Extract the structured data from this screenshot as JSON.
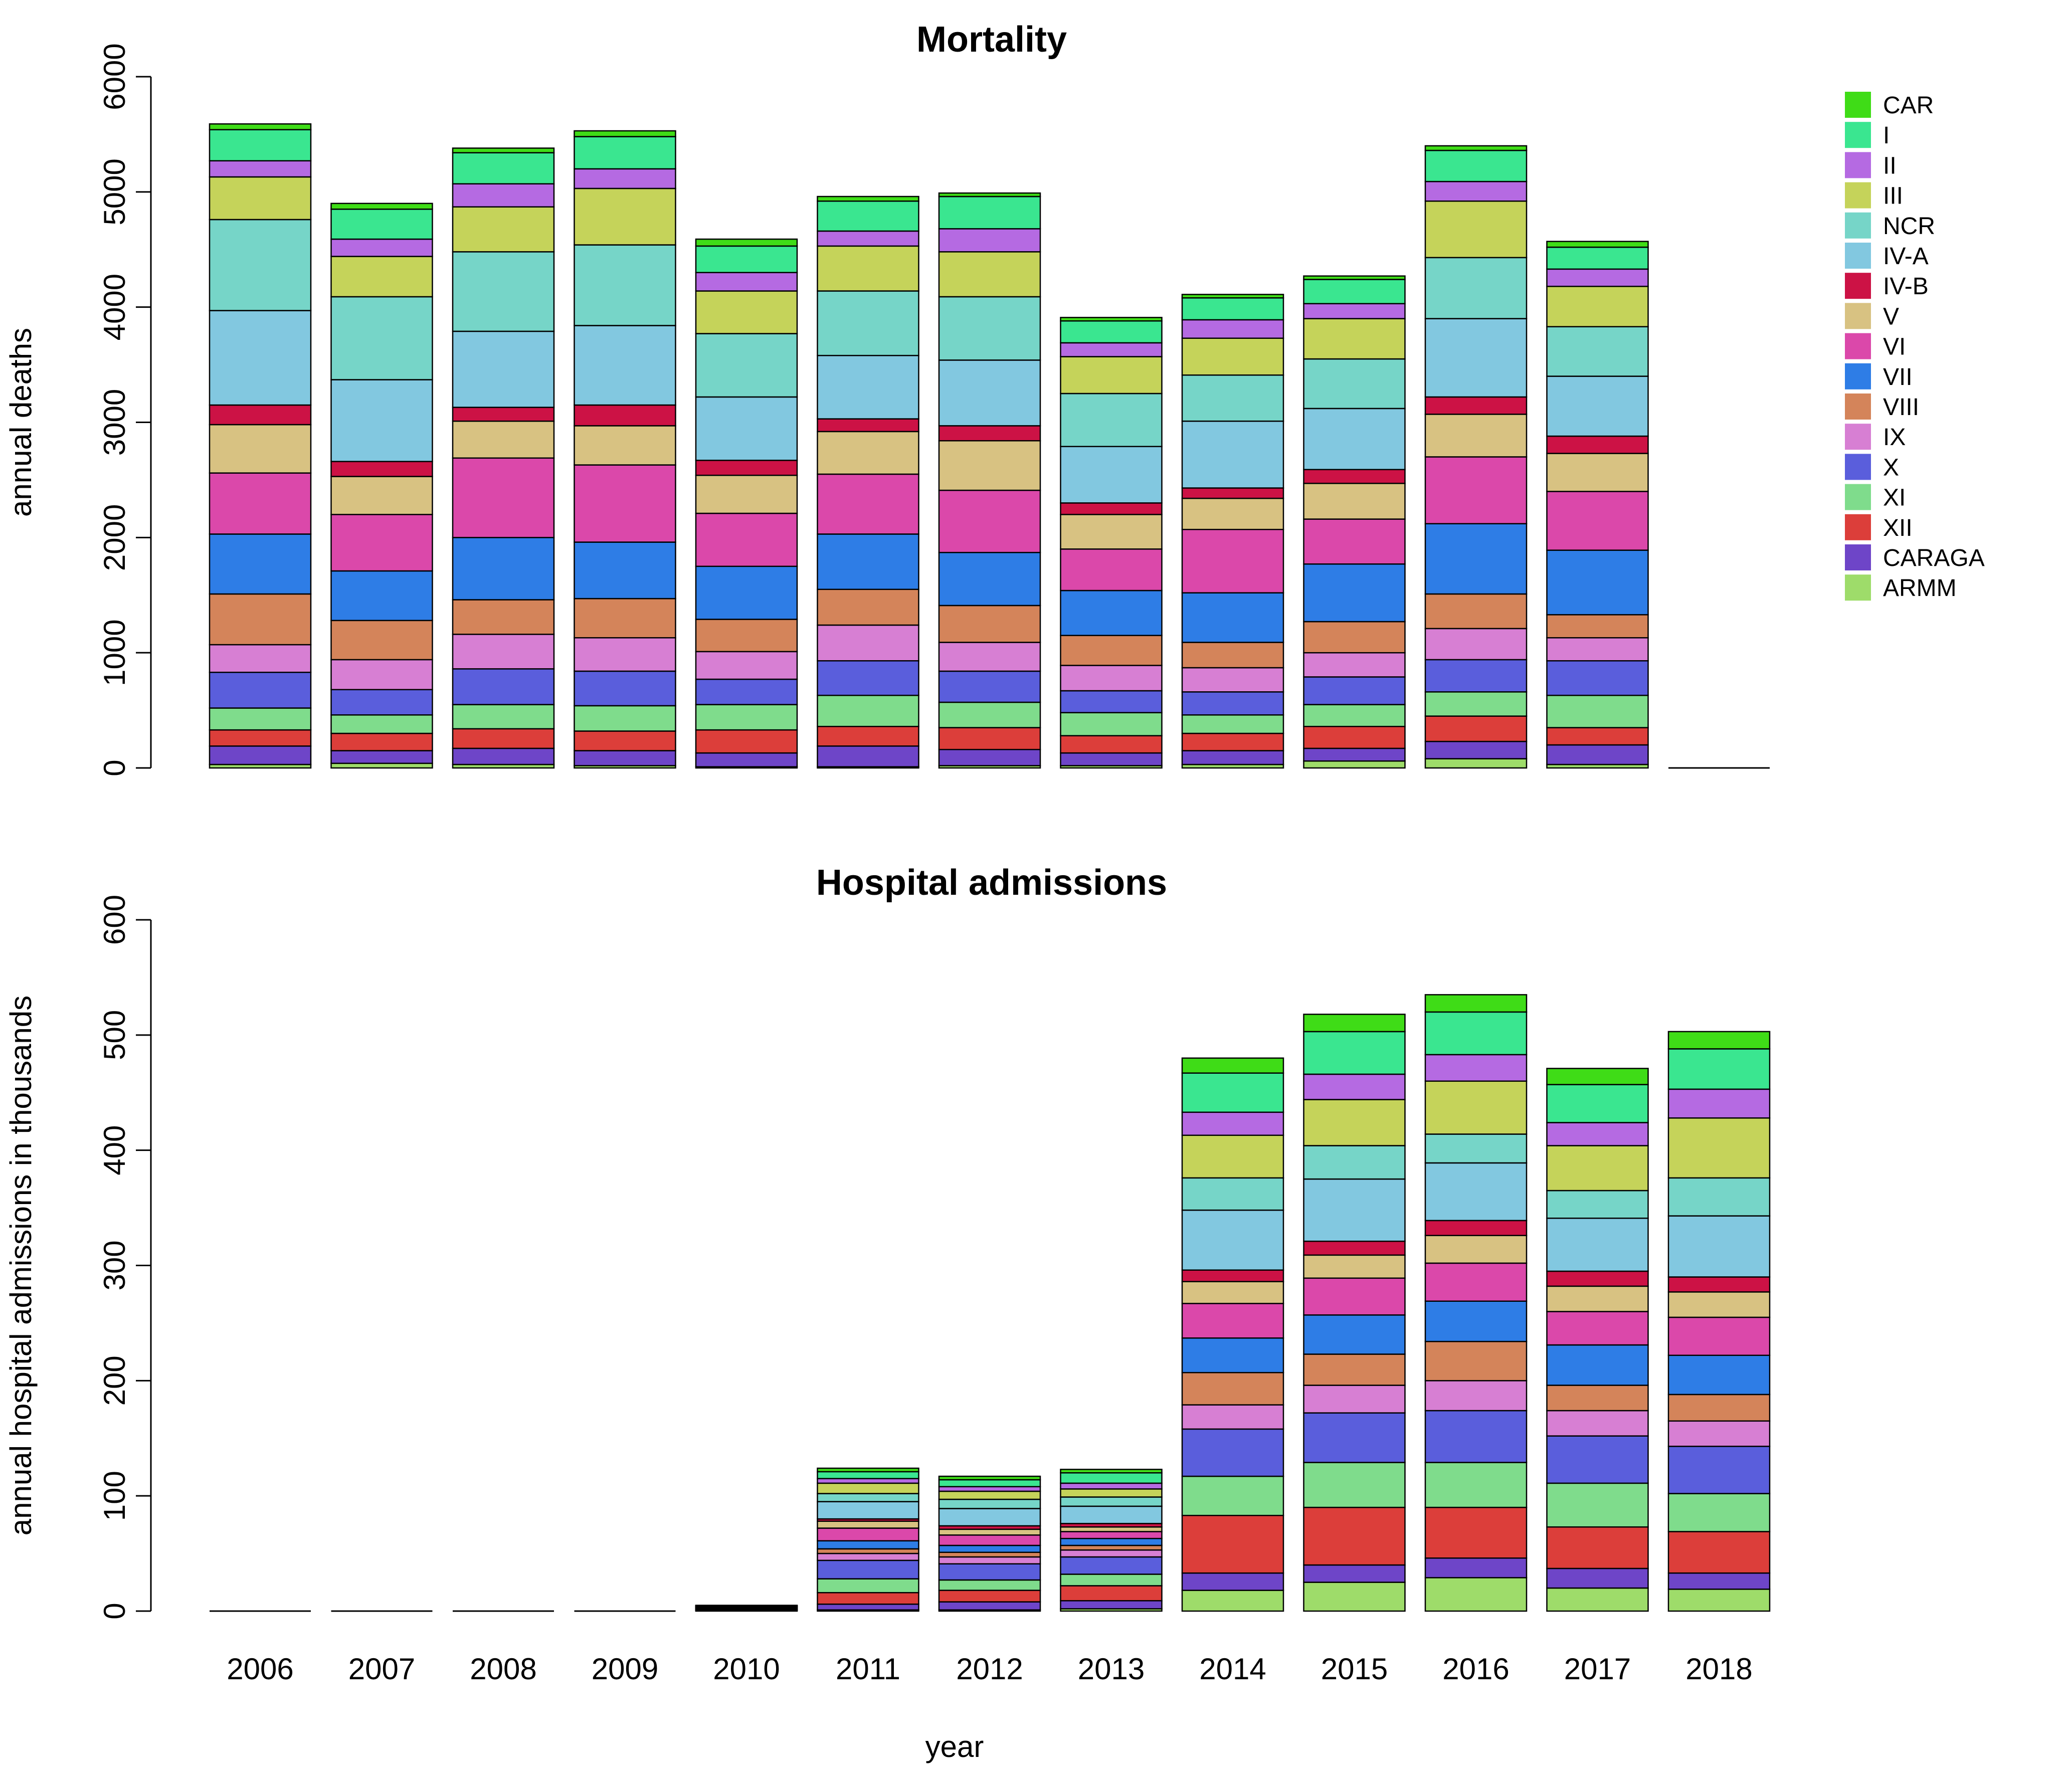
{
  "chart_data": [
    {
      "type": "bar",
      "stacked": true,
      "title": "Mortality",
      "xlabel": "",
      "ylabel": "annual deaths",
      "ylim": [
        0,
        6000
      ],
      "yticks": [
        0,
        1000,
        2000,
        3000,
        4000,
        5000,
        6000
      ],
      "categories": [
        "2006",
        "2007",
        "2008",
        "2009",
        "2010",
        "2011",
        "2012",
        "2013",
        "2014",
        "2015",
        "2016",
        "2017",
        "2018"
      ],
      "series": [
        {
          "name": "ARMM",
          "color": "#9edc6a",
          "values": [
            30,
            40,
            30,
            20,
            10,
            10,
            20,
            20,
            30,
            60,
            80,
            30,
            0
          ]
        },
        {
          "name": "CARAGA",
          "color": "#6e45c8",
          "values": [
            160,
            110,
            140,
            130,
            120,
            180,
            140,
            110,
            120,
            110,
            150,
            170,
            0
          ]
        },
        {
          "name": "XII",
          "color": "#dc3e3a",
          "values": [
            140,
            150,
            170,
            170,
            200,
            170,
            190,
            150,
            150,
            190,
            220,
            150,
            0
          ]
        },
        {
          "name": "XI",
          "color": "#7fdc8c",
          "values": [
            190,
            160,
            210,
            220,
            220,
            270,
            220,
            200,
            160,
            190,
            210,
            280,
            0
          ]
        },
        {
          "name": "X",
          "color": "#5a5edc",
          "values": [
            310,
            220,
            310,
            300,
            220,
            300,
            270,
            190,
            200,
            240,
            280,
            300,
            0
          ]
        },
        {
          "name": "IX",
          "color": "#d77fd3",
          "values": [
            240,
            260,
            300,
            290,
            240,
            310,
            250,
            220,
            210,
            210,
            270,
            200,
            0
          ]
        },
        {
          "name": "VIII",
          "color": "#d4845a",
          "values": [
            440,
            340,
            300,
            340,
            280,
            310,
            320,
            260,
            220,
            270,
            300,
            200,
            0
          ]
        },
        {
          "name": "VII",
          "color": "#2e7de6",
          "values": [
            520,
            430,
            540,
            490,
            460,
            480,
            460,
            390,
            430,
            500,
            610,
            560,
            0
          ]
        },
        {
          "name": "VI",
          "color": "#db48aa",
          "values": [
            530,
            490,
            690,
            670,
            460,
            520,
            540,
            360,
            550,
            390,
            580,
            510,
            0
          ]
        },
        {
          "name": "V",
          "color": "#d8c282",
          "values": [
            420,
            330,
            320,
            340,
            330,
            370,
            430,
            300,
            270,
            310,
            370,
            330,
            0
          ]
        },
        {
          "name": "IV-B",
          "color": "#cc1245",
          "values": [
            170,
            130,
            120,
            180,
            130,
            110,
            130,
            100,
            90,
            120,
            150,
            150,
            0
          ]
        },
        {
          "name": "IV-A",
          "color": "#82c8e0",
          "values": [
            820,
            710,
            660,
            690,
            550,
            550,
            570,
            490,
            580,
            530,
            680,
            520,
            0
          ]
        },
        {
          "name": "NCR",
          "color": "#76d5c8",
          "values": [
            790,
            720,
            690,
            700,
            550,
            560,
            550,
            460,
            400,
            430,
            530,
            430,
            0
          ]
        },
        {
          "name": "III",
          "color": "#c5d35a",
          "values": [
            370,
            350,
            390,
            490,
            370,
            390,
            390,
            320,
            320,
            350,
            490,
            350,
            0
          ]
        },
        {
          "name": "II",
          "color": "#b56ae2",
          "values": [
            140,
            150,
            200,
            170,
            160,
            130,
            200,
            120,
            160,
            130,
            170,
            150,
            0
          ]
        },
        {
          "name": "I",
          "color": "#3ae690",
          "values": [
            270,
            260,
            270,
            280,
            230,
            260,
            280,
            190,
            190,
            210,
            270,
            190,
            0
          ]
        },
        {
          "name": "CAR",
          "color": "#3fdc17",
          "values": [
            50,
            50,
            40,
            50,
            60,
            40,
            30,
            30,
            30,
            30,
            40,
            50,
            0
          ]
        }
      ]
    },
    {
      "type": "bar",
      "stacked": true,
      "title": "Hospital admissions",
      "xlabel": "year",
      "ylabel": "annual hospital admissions in thousands",
      "ylim": [
        0,
        600
      ],
      "yticks": [
        0,
        100,
        200,
        300,
        400,
        500,
        600
      ],
      "categories": [
        "2006",
        "2007",
        "2008",
        "2009",
        "2010",
        "2011",
        "2012",
        "2013",
        "2014",
        "2015",
        "2016",
        "2017",
        "2018"
      ],
      "series": [
        {
          "name": "ARMM",
          "color": "#9edc6a",
          "values": [
            0,
            0,
            0,
            0,
            0.3,
            1,
            1,
            2,
            18,
            25,
            29,
            20,
            19
          ]
        },
        {
          "name": "CARAGA",
          "color": "#6e45c8",
          "values": [
            0,
            0,
            0,
            0,
            0.3,
            5,
            7,
            7,
            15,
            15,
            17,
            17,
            14
          ]
        },
        {
          "name": "XII",
          "color": "#dc3e3a",
          "values": [
            0,
            0,
            0,
            0,
            0.3,
            10,
            10,
            13,
            50,
            50,
            44,
            36,
            36
          ]
        },
        {
          "name": "XI",
          "color": "#7fdc8c",
          "values": [
            0,
            0,
            0,
            0,
            0.3,
            12,
            9,
            10,
            34,
            39,
            39,
            38,
            33
          ]
        },
        {
          "name": "X",
          "color": "#5a5edc",
          "values": [
            0,
            0,
            0,
            0,
            0.4,
            16,
            14,
            15,
            41,
            43,
            45,
            41,
            41
          ]
        },
        {
          "name": "IX",
          "color": "#d77fd3",
          "values": [
            0,
            0,
            0,
            0,
            0.3,
            6,
            6,
            6,
            21,
            24,
            26,
            22,
            22
          ]
        },
        {
          "name": "VIII",
          "color": "#d4845a",
          "values": [
            0,
            0,
            0,
            0,
            0.3,
            4,
            4,
            4,
            28,
            27,
            34,
            22,
            23
          ]
        },
        {
          "name": "VII",
          "color": "#2e7de6",
          "values": [
            0,
            0,
            0,
            0,
            0.3,
            7,
            6,
            6,
            30,
            34,
            35,
            35,
            34
          ]
        },
        {
          "name": "VI",
          "color": "#db48aa",
          "values": [
            0,
            0,
            0,
            0,
            0.3,
            11,
            9,
            6,
            30,
            32,
            33,
            29,
            33
          ]
        },
        {
          "name": "V",
          "color": "#d8c282",
          "values": [
            0,
            0,
            0,
            0,
            0.3,
            6,
            5,
            4,
            19,
            20,
            24,
            22,
            22
          ]
        },
        {
          "name": "IV-B",
          "color": "#cc1245",
          "values": [
            0,
            0,
            0,
            0,
            0.2,
            2,
            3,
            3,
            10,
            12,
            13,
            13,
            13
          ]
        },
        {
          "name": "IV-A",
          "color": "#82c8e0",
          "values": [
            0,
            0,
            0,
            0,
            0.4,
            15,
            15,
            15,
            52,
            54,
            50,
            46,
            53
          ]
        },
        {
          "name": "NCR",
          "color": "#76d5c8",
          "values": [
            0,
            0,
            0,
            0,
            0.3,
            7,
            8,
            8,
            28,
            29,
            25,
            24,
            33
          ]
        },
        {
          "name": "III",
          "color": "#c5d35a",
          "values": [
            0,
            0,
            0,
            0,
            0.3,
            9,
            7,
            7,
            37,
            40,
            46,
            39,
            52
          ]
        },
        {
          "name": "II",
          "color": "#b56ae2",
          "values": [
            0,
            0,
            0,
            0,
            0.2,
            4,
            4,
            5,
            20,
            22,
            23,
            20,
            25
          ]
        },
        {
          "name": "I",
          "color": "#3ae690",
          "values": [
            0,
            0,
            0,
            0,
            0.3,
            6,
            6,
            9,
            34,
            37,
            37,
            33,
            35
          ]
        },
        {
          "name": "CAR",
          "color": "#3fdc17",
          "values": [
            0,
            0,
            0,
            0,
            0.2,
            3,
            3,
            3,
            13,
            15,
            15,
            14,
            15
          ]
        }
      ]
    }
  ],
  "legend": {
    "placement": "right",
    "entries": [
      {
        "name": "CAR",
        "color": "#3fdc17"
      },
      {
        "name": "I",
        "color": "#3ae690"
      },
      {
        "name": "II",
        "color": "#b56ae2"
      },
      {
        "name": "III",
        "color": "#c5d35a"
      },
      {
        "name": "NCR",
        "color": "#76d5c8"
      },
      {
        "name": "IV-A",
        "color": "#82c8e0"
      },
      {
        "name": "IV-B",
        "color": "#cc1245"
      },
      {
        "name": "V",
        "color": "#d8c282"
      },
      {
        "name": "VI",
        "color": "#db48aa"
      },
      {
        "name": "VII",
        "color": "#2e7de6"
      },
      {
        "name": "VIII",
        "color": "#d4845a"
      },
      {
        "name": "IX",
        "color": "#d77fd3"
      },
      {
        "name": "X",
        "color": "#5a5edc"
      },
      {
        "name": "XI",
        "color": "#7fdc8c"
      },
      {
        "name": "XII",
        "color": "#dc3e3a"
      },
      {
        "name": "CARAGA",
        "color": "#6e45c8"
      },
      {
        "name": "ARMM",
        "color": "#9edc6a"
      }
    ]
  }
}
